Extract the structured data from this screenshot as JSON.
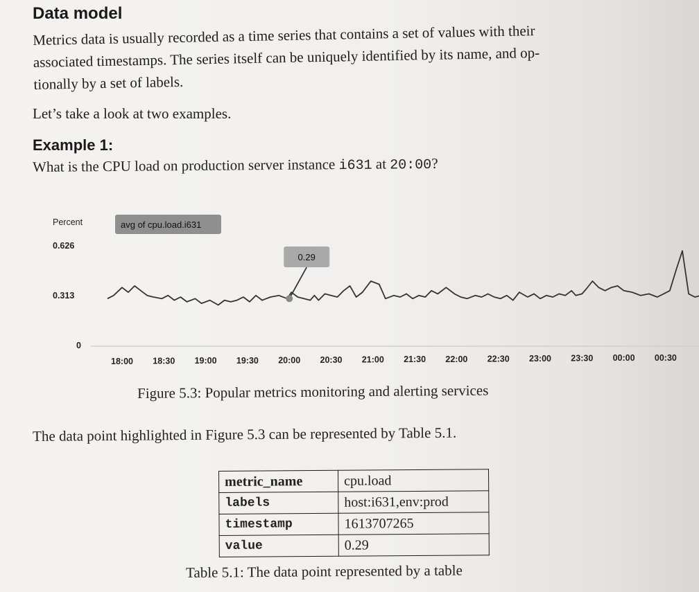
{
  "heading": "Data model",
  "paragraph1_lines": [
    "Metrics data is usually recorded as a time series that contains a set of values with their",
    "associated timestamps. The series itself can be uniquely identified by its name, and op-",
    "tionally by a set of labels."
  ],
  "paragraph2": "Let’s take a look at two examples.",
  "example_heading": "Example 1:",
  "question": {
    "before": "What is the CPU load on production server instance ",
    "instance": "i631",
    "middle": " at ",
    "time": "20:00",
    "after": "?"
  },
  "chart_data": {
    "type": "line",
    "ylabel": "Percent",
    "legend": "avg of cpu.load.i631",
    "y_ticks": [
      "0.626",
      "0.313",
      "0"
    ],
    "ylim": [
      0,
      0.626
    ],
    "x_ticks": [
      "18:00",
      "18:30",
      "19:00",
      "19:30",
      "20:00",
      "20:30",
      "21:00",
      "21:30",
      "22:00",
      "22:30",
      "23:00",
      "23:30",
      "00:00",
      "00:30"
    ],
    "xlim": [
      -0.5,
      14.6
    ],
    "highlight": {
      "x": 4,
      "y": 0.29,
      "label": "0.29"
    },
    "series": [
      {
        "x": [
          -0.35,
          -0.2,
          0,
          0.15,
          0.3,
          0.45,
          0.6,
          0.75,
          0.95,
          1.1,
          1.25,
          1.4,
          1.55,
          1.75,
          1.9,
          2.1,
          2.3,
          2.45,
          2.6,
          2.75,
          2.9,
          3.05,
          3.2,
          3.35,
          3.55,
          3.75,
          3.95,
          4.05,
          4.2,
          4.35,
          4.5,
          4.6,
          4.7,
          4.85,
          5.0,
          5.15,
          5.3,
          5.45,
          5.6,
          5.75,
          5.95,
          6.15,
          6.3,
          6.5,
          6.65,
          6.8,
          6.95,
          7.1,
          7.25,
          7.4,
          7.55,
          7.75,
          7.95,
          8.1,
          8.25,
          8.45,
          8.6,
          8.75,
          8.9,
          9.05,
          9.2,
          9.35,
          9.5,
          9.7,
          9.85,
          10.0,
          10.15,
          10.3,
          10.45,
          10.6,
          10.75,
          10.85,
          11.0,
          11.1,
          11.25,
          11.4,
          11.55,
          11.7,
          11.85,
          12.0,
          12.2,
          12.4,
          12.6,
          12.8,
          12.95,
          13.1,
          13.25,
          13.4,
          13.55,
          13.7,
          13.85,
          14.1,
          14.35
        ],
        "y": [
          0.29,
          0.31,
          0.36,
          0.33,
          0.37,
          0.34,
          0.31,
          0.3,
          0.29,
          0.31,
          0.28,
          0.3,
          0.27,
          0.29,
          0.26,
          0.28,
          0.25,
          0.28,
          0.27,
          0.28,
          0.3,
          0.27,
          0.31,
          0.28,
          0.3,
          0.31,
          0.29,
          0.33,
          0.3,
          0.29,
          0.28,
          0.31,
          0.28,
          0.32,
          0.31,
          0.3,
          0.34,
          0.37,
          0.3,
          0.33,
          0.4,
          0.38,
          0.29,
          0.31,
          0.3,
          0.32,
          0.29,
          0.31,
          0.3,
          0.34,
          0.32,
          0.36,
          0.32,
          0.3,
          0.29,
          0.31,
          0.3,
          0.32,
          0.3,
          0.29,
          0.31,
          0.28,
          0.33,
          0.3,
          0.32,
          0.29,
          0.31,
          0.3,
          0.32,
          0.31,
          0.34,
          0.31,
          0.32,
          0.35,
          0.4,
          0.36,
          0.34,
          0.36,
          0.37,
          0.34,
          0.33,
          0.31,
          0.32,
          0.3,
          0.32,
          0.34,
          0.47,
          0.59,
          0.32,
          0.3,
          0.31,
          0.32,
          0.33
        ]
      }
    ]
  },
  "figure_caption": "Figure 5.3: Popular metrics monitoring and alerting services",
  "intro_sentence": "The data point highlighted in Figure 5.3 can be represented by Table 5.1.",
  "table": [
    {
      "key": "metric_name",
      "value": "cpu.load",
      "mono": false
    },
    {
      "key": "labels",
      "value": "host:i631,env:prod",
      "mono": true
    },
    {
      "key": "timestamp",
      "value": "1613707265",
      "mono": true
    },
    {
      "key": "value",
      "value": "0.29",
      "mono": true
    }
  ],
  "table_caption": "Table 5.1: The data point represented by a table"
}
